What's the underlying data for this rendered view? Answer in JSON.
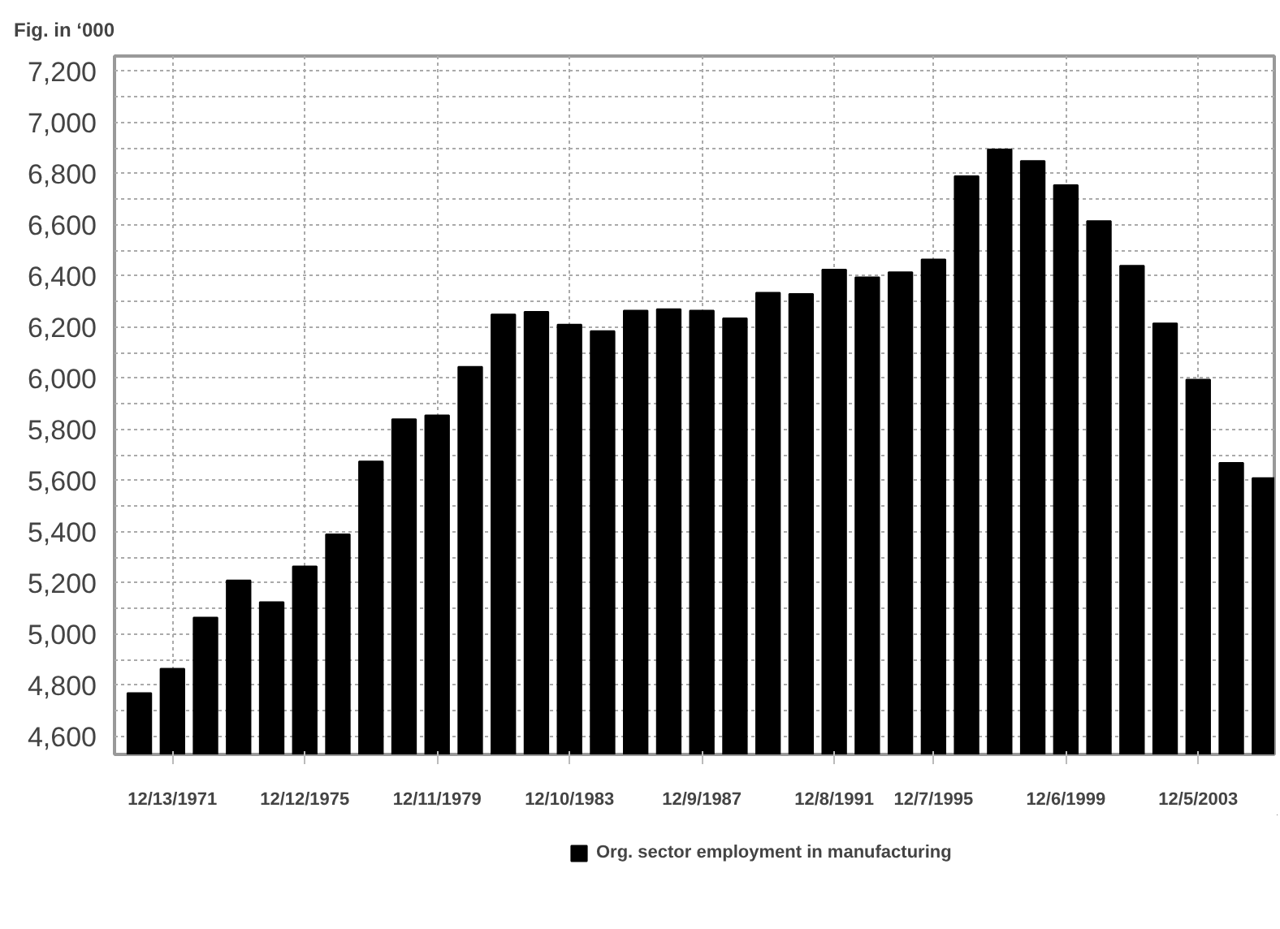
{
  "chart_data": {
    "type": "bar",
    "title": "Fig. in ‘000",
    "categories": [
      null,
      "12/13/1971",
      null,
      null,
      null,
      "12/12/1975",
      null,
      null,
      null,
      "12/11/1979",
      null,
      null,
      null,
      "12/10/1983",
      null,
      null,
      null,
      "12/9/1987",
      null,
      null,
      null,
      "12/8/1991",
      null,
      null,
      "12/7/1995",
      null,
      null,
      null,
      "12/6/1999",
      null,
      null,
      null,
      "12/5/2003",
      null,
      null
    ],
    "series": [
      {
        "name": "Org. sector employment in manufacturing",
        "color": "#000000",
        "values": [
          4770,
          4865,
          5065,
          5210,
          5125,
          5265,
          5390,
          5675,
          5840,
          5855,
          6045,
          6250,
          6260,
          6210,
          6185,
          6265,
          6270,
          6265,
          6235,
          6335,
          6330,
          6425,
          6395,
          6415,
          6465,
          6790,
          6895,
          6850,
          6755,
          6615,
          6440,
          6215,
          5995,
          5670,
          5610
        ]
      }
    ],
    "ylim": [
      4530,
      7260
    ],
    "yticks": [
      {
        "value": 4600,
        "label": "4,600"
      },
      {
        "value": 4700,
        "label": null
      },
      {
        "value": 4800,
        "label": "4,800"
      },
      {
        "value": 4900,
        "label": null
      },
      {
        "value": 5000,
        "label": "5,000"
      },
      {
        "value": 5100,
        "label": null
      },
      {
        "value": 5200,
        "label": "5,200"
      },
      {
        "value": 5300,
        "label": null
      },
      {
        "value": 5400,
        "label": "5,400"
      },
      {
        "value": 5500,
        "label": null
      },
      {
        "value": 5600,
        "label": "5,600"
      },
      {
        "value": 5700,
        "label": null
      },
      {
        "value": 5800,
        "label": "5,800"
      },
      {
        "value": 5900,
        "label": null
      },
      {
        "value": 6000,
        "label": "6,000"
      },
      {
        "value": 6100,
        "label": null
      },
      {
        "value": 6200,
        "label": "6,200"
      },
      {
        "value": 6300,
        "label": null
      },
      {
        "value": 6400,
        "label": "6,400"
      },
      {
        "value": 6500,
        "label": null
      },
      {
        "value": 6600,
        "label": "6,600"
      },
      {
        "value": 6700,
        "label": null
      },
      {
        "value": 6800,
        "label": "6,800"
      },
      {
        "value": 6900,
        "label": null
      },
      {
        "value": 7000,
        "label": "7,000"
      },
      {
        "value": 7100,
        "label": null
      },
      {
        "value": 7200,
        "label": "7,200"
      }
    ],
    "grid": true,
    "legend": "bottom"
  }
}
